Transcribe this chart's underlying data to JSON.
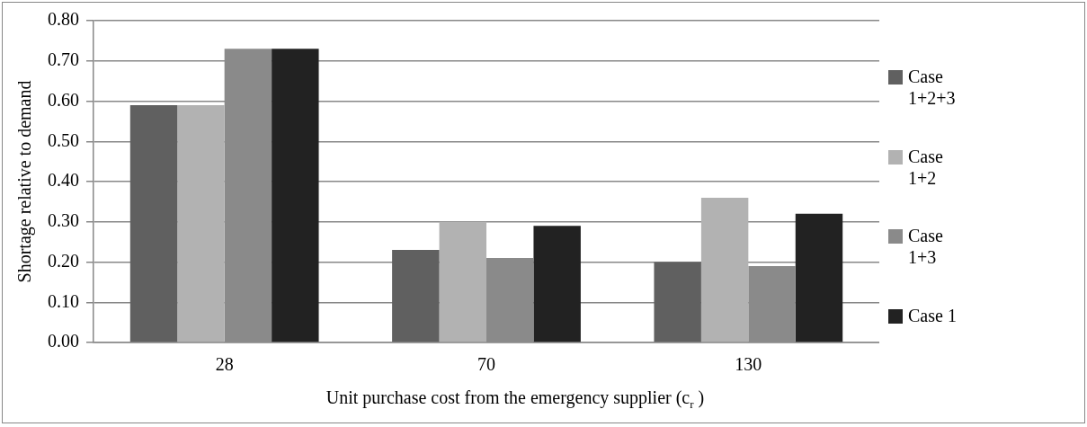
{
  "chart_data": {
    "type": "bar",
    "xlabel": "Unit purchase cost from the emergency supplier (c$_{r}$ )",
    "ylabel": "Shortage relative to demand",
    "categories": [
      "28",
      "70",
      "130"
    ],
    "series": [
      {
        "name": "Case 1+2+3",
        "color": "#606060",
        "values": [
          0.59,
          0.23,
          0.2
        ]
      },
      {
        "name": "Case 1+2",
        "color": "#b2b2b2",
        "values": [
          0.59,
          0.3,
          0.36
        ]
      },
      {
        "name": "Case 1+3",
        "color": "#8a8a8a",
        "values": [
          0.73,
          0.21,
          0.19
        ]
      },
      {
        "name": "Case 1",
        "color": "#222222",
        "values": [
          0.73,
          0.29,
          0.32
        ]
      }
    ],
    "ylim": [
      0,
      0.8
    ],
    "yticks": [
      {
        "value": 0,
        "label": "0.00"
      },
      {
        "value": 0.1,
        "label": "0.10"
      },
      {
        "value": 0.2,
        "label": "0.20"
      },
      {
        "value": 0.3,
        "label": "0.30"
      },
      {
        "value": 0.4,
        "label": "0.40"
      },
      {
        "value": 0.5,
        "label": "0.50"
      },
      {
        "value": 0.6,
        "label": "0.60"
      },
      {
        "value": 0.7,
        "label": "0.70"
      },
      {
        "value": 0.8,
        "label": "0.80"
      }
    ],
    "grid": "y",
    "legend": "right"
  }
}
